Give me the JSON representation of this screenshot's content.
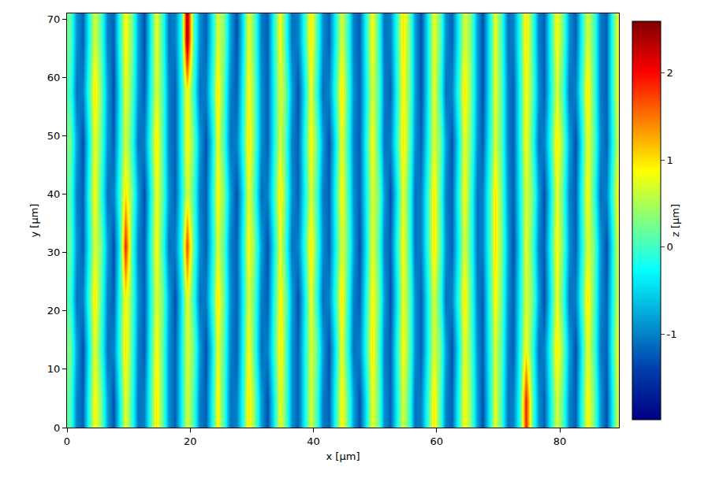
{
  "chart_data": {
    "type": "heatmap",
    "x_label": "x [µm]",
    "y_label": "y [µm]",
    "colorbar_label": "z [µm]",
    "xlim": [
      0,
      89.6
    ],
    "ylim": [
      0,
      71
    ],
    "xticks": [
      0,
      20,
      40,
      60,
      80
    ],
    "yticks": [
      0,
      10,
      20,
      30,
      40,
      50,
      60,
      70
    ],
    "zlim": [
      -1.98,
      2.59
    ],
    "zticks": [
      -1,
      0,
      1,
      2
    ],
    "x": [
      0.5,
      1.5,
      2.5,
      3.5,
      4.5,
      5.5,
      6.5,
      7.5,
      8.5,
      9.5,
      10.5,
      11.5,
      12.5,
      13.5,
      14.5,
      15.5,
      16.5,
      17.5,
      18.5,
      19.5,
      20.5,
      21.5,
      22.5,
      23.5,
      24.5,
      25.5,
      26.5,
      27.5,
      28.5,
      29.5,
      30.5,
      31.5,
      32.5,
      33.5,
      34.5,
      35.5,
      36.5,
      37.5,
      38.5,
      39.5,
      40.5,
      41.5,
      42.5,
      43.5,
      44.5,
      45.5,
      46.5,
      47.5,
      48.5,
      49.5,
      50.5,
      51.5,
      52.5,
      53.5,
      54.5,
      55.5,
      56.5,
      57.5,
      58.5,
      59.5,
      60.5,
      61.5,
      62.5,
      63.5,
      64.5,
      65.5,
      66.5,
      67.5,
      68.5,
      69.5,
      70.5,
      71.5,
      72.5,
      73.5,
      74.5,
      75.5,
      76.5,
      77.5,
      78.5,
      79.5,
      80.5,
      81.5,
      82.5,
      83.5,
      84.5,
      85.5,
      86.5,
      87.5,
      88.5,
      89.5
    ],
    "y": [
      4.4,
      13.3,
      22.2,
      31.1,
      39.9,
      48.8,
      57.7,
      66.6
    ],
    "z": [
      [
        0.1,
        -1.0,
        -1.2,
        -0.2,
        0.9,
        0.3,
        -0.8,
        -1.3,
        -0.4,
        0.8,
        0.0,
        -1.1,
        -1.0,
        -0.1,
        1.0,
        0.2,
        -0.9,
        -1.2,
        -0.3,
        0.7,
        0.1,
        -1.0,
        -1.2,
        -0.2,
        0.9,
        0.0,
        -1.1,
        -1.0,
        -0.1,
        1.0,
        0.3,
        -0.8,
        -1.3,
        -0.4,
        0.8,
        0.2,
        -0.9,
        -1.2,
        -0.3,
        0.7,
        0.1,
        -1.0,
        -1.2,
        -0.2,
        0.9,
        0.3,
        -0.8,
        -1.3,
        -0.4,
        0.8,
        0.2,
        -0.9,
        -1.2,
        -0.3,
        0.7,
        0.0,
        -1.1,
        -1.0,
        -0.1,
        1.0,
        0.1,
        -1.0,
        -1.2,
        -0.2,
        0.9,
        0.3,
        -0.8,
        -1.3,
        -0.4,
        0.8,
        0.0,
        -1.1,
        -1.0,
        -0.1,
        1.9,
        0.2,
        -0.9,
        -1.2,
        -0.3,
        0.7,
        0.1,
        -1.0,
        -1.2,
        -0.2,
        0.9,
        0.3,
        -0.8,
        -1.3,
        -0.4,
        0.8
      ],
      [
        0.3,
        -0.8,
        -1.3,
        -0.4,
        0.8,
        0.0,
        -1.1,
        -1.0,
        -0.1,
        1.0,
        0.1,
        -1.0,
        -1.2,
        -0.2,
        0.9,
        0.2,
        -0.9,
        -1.2,
        -0.3,
        0.7,
        0.3,
        -0.8,
        -1.3,
        -0.4,
        0.8,
        0.1,
        -1.0,
        -1.2,
        -0.2,
        0.9,
        0.0,
        -1.1,
        -1.0,
        -0.1,
        1.0,
        0.2,
        -0.9,
        -1.2,
        -0.3,
        0.7,
        0.3,
        -0.8,
        -1.3,
        -0.4,
        0.8,
        0.0,
        -1.1,
        -1.0,
        -0.1,
        1.0,
        0.1,
        -1.0,
        -1.2,
        -0.2,
        0.9,
        0.2,
        -0.9,
        -1.2,
        -0.3,
        0.7,
        0.3,
        -0.8,
        -1.3,
        -0.4,
        0.8,
        0.2,
        -0.9,
        -1.2,
        -0.3,
        0.7,
        0.1,
        -1.0,
        -1.2,
        -0.2,
        0.9,
        0.0,
        -1.1,
        -1.0,
        -0.1,
        1.0,
        0.3,
        -0.8,
        -1.3,
        -0.4,
        0.8,
        0.1,
        -1.0,
        -1.2,
        -0.2,
        0.9
      ],
      [
        0.0,
        -1.1,
        -1.0,
        -0.1,
        1.0,
        0.1,
        -1.0,
        -1.2,
        -0.2,
        0.9,
        0.2,
        -0.9,
        -1.2,
        -0.3,
        0.7,
        0.3,
        -0.8,
        -1.3,
        -0.4,
        0.8,
        0.0,
        -1.1,
        -1.0,
        -0.1,
        1.0,
        0.2,
        -0.9,
        -1.2,
        -0.3,
        0.7,
        0.1,
        -1.0,
        -1.2,
        -0.2,
        0.9,
        0.3,
        -0.8,
        -1.3,
        -0.4,
        0.8,
        0.0,
        -1.1,
        -1.0,
        -0.1,
        1.0,
        0.1,
        -1.0,
        -1.2,
        -0.2,
        0.9,
        0.3,
        -0.8,
        -1.3,
        -0.4,
        0.8,
        0.2,
        -0.9,
        -1.2,
        -0.3,
        0.7,
        0.0,
        -1.1,
        -1.0,
        -0.1,
        1.0,
        0.1,
        -1.0,
        -1.2,
        -0.2,
        0.9,
        0.2,
        -0.9,
        -1.2,
        -0.3,
        0.7,
        0.3,
        -0.8,
        -1.3,
        -0.4,
        0.8,
        0.0,
        -1.1,
        -1.0,
        -0.1,
        1.0,
        0.2,
        -0.9,
        -1.2,
        -0.3,
        0.7
      ],
      [
        0.2,
        -0.9,
        -1.2,
        -0.3,
        0.7,
        0.3,
        -0.8,
        -1.3,
        -0.4,
        1.9,
        0.1,
        -1.0,
        -1.2,
        -0.2,
        0.9,
        0.0,
        -1.1,
        -1.0,
        -0.1,
        1.7,
        0.2,
        -0.9,
        -1.2,
        -0.3,
        0.7,
        0.1,
        -1.0,
        -1.2,
        -0.2,
        0.9,
        0.3,
        -0.8,
        -1.3,
        -0.4,
        0.8,
        0.0,
        -1.1,
        -1.0,
        -0.1,
        1.0,
        0.2,
        -0.9,
        -1.2,
        -0.3,
        0.7,
        0.3,
        -0.8,
        -1.3,
        -0.4,
        0.8,
        0.1,
        -1.0,
        -1.2,
        -0.2,
        0.9,
        0.0,
        -1.1,
        -1.0,
        -0.1,
        1.0,
        0.2,
        -0.9,
        -1.2,
        -0.3,
        0.7,
        0.0,
        -1.1,
        -1.0,
        -0.1,
        1.0,
        0.3,
        -0.8,
        -1.3,
        -0.4,
        0.8,
        0.1,
        -1.0,
        -1.2,
        -0.2,
        0.9,
        0.2,
        -0.9,
        -1.2,
        -0.3,
        0.7,
        0.3,
        -0.8,
        -1.3,
        -0.4,
        0.8
      ],
      [
        0.1,
        -1.0,
        -1.2,
        -0.2,
        0.9,
        0.0,
        -1.1,
        -1.0,
        -0.1,
        1.0,
        0.3,
        -0.8,
        -1.3,
        -0.4,
        0.8,
        0.2,
        -0.9,
        -1.2,
        -0.3,
        0.7,
        0.1,
        -1.0,
        -1.2,
        -0.2,
        0.9,
        0.3,
        -0.8,
        -1.3,
        -0.4,
        0.8,
        0.0,
        -1.1,
        -1.0,
        -0.1,
        1.0,
        0.2,
        -0.9,
        -1.2,
        -0.3,
        0.7,
        0.1,
        -1.0,
        -1.2,
        -0.2,
        0.9,
        0.2,
        -0.9,
        -1.2,
        -0.3,
        0.7,
        0.3,
        -0.8,
        -1.3,
        -0.4,
        0.8,
        0.0,
        -1.1,
        -1.0,
        -0.1,
        1.0,
        0.1,
        -1.0,
        -1.2,
        -0.2,
        0.9,
        0.0,
        -1.1,
        -1.0,
        -0.1,
        1.0,
        0.2,
        -0.9,
        -1.2,
        -0.3,
        0.7,
        0.3,
        -0.8,
        -1.3,
        -0.4,
        0.8,
        0.1,
        -1.0,
        -1.2,
        -0.2,
        0.9,
        0.0,
        -1.1,
        -1.0,
        -0.1,
        1.0
      ],
      [
        0.3,
        -0.8,
        -1.3,
        -0.4,
        0.8,
        0.2,
        -0.9,
        -1.2,
        -0.3,
        0.7,
        0.0,
        -1.1,
        -1.0,
        -0.1,
        1.0,
        0.1,
        -1.0,
        -1.2,
        -0.2,
        0.9,
        0.3,
        -0.8,
        -1.3,
        -0.4,
        0.8,
        0.0,
        -1.1,
        -1.0,
        -0.1,
        1.0,
        0.2,
        -0.9,
        -1.2,
        -0.3,
        0.7,
        0.1,
        -1.0,
        -1.2,
        -0.2,
        0.9,
        0.3,
        -0.8,
        -1.3,
        -0.4,
        0.8,
        0.1,
        -1.0,
        -1.2,
        -0.2,
        0.9,
        0.0,
        -1.1,
        -1.0,
        -0.1,
        1.0,
        0.2,
        -0.9,
        -1.2,
        -0.3,
        0.7,
        0.3,
        -0.8,
        -1.3,
        -0.4,
        0.8,
        0.2,
        -0.9,
        -1.2,
        -0.3,
        0.7,
        0.1,
        -1.0,
        -1.2,
        -0.2,
        0.9,
        0.0,
        -1.1,
        -1.0,
        -0.1,
        1.0,
        0.3,
        -0.8,
        -1.3,
        -0.4,
        0.8,
        0.2,
        -0.9,
        -1.2,
        -0.3,
        0.7
      ],
      [
        0.0,
        -1.1,
        -1.0,
        -0.1,
        1.0,
        0.3,
        -0.8,
        -1.3,
        -0.4,
        0.8,
        0.2,
        -0.9,
        -1.2,
        -0.3,
        0.7,
        0.1,
        -1.0,
        -1.2,
        -0.2,
        0.9,
        0.0,
        -1.1,
        -1.0,
        -0.1,
        1.0,
        0.1,
        -1.0,
        -1.2,
        -0.2,
        0.9,
        0.2,
        -0.9,
        -1.2,
        -0.3,
        0.7,
        0.3,
        -0.8,
        -1.3,
        -0.4,
        0.8,
        0.0,
        -1.1,
        -1.0,
        -0.1,
        1.0,
        0.2,
        -0.9,
        -1.2,
        -0.3,
        0.7,
        0.1,
        -1.0,
        -1.2,
        -0.2,
        0.9,
        0.3,
        -0.8,
        -1.3,
        -0.4,
        0.8,
        0.0,
        -1.1,
        -1.0,
        -0.1,
        1.0,
        0.3,
        -0.8,
        -1.3,
        -0.4,
        0.8,
        0.1,
        -1.0,
        -1.2,
        -0.2,
        0.9,
        0.2,
        -0.9,
        -1.2,
        -0.3,
        0.7,
        0.0,
        -1.1,
        -1.0,
        -0.1,
        1.0,
        0.1,
        -1.0,
        -1.2,
        -0.2,
        0.9
      ],
      [
        0.2,
        -0.9,
        -1.2,
        -0.3,
        0.7,
        0.1,
        -1.0,
        -1.2,
        -0.2,
        0.9,
        0.3,
        -0.8,
        -1.3,
        -0.4,
        0.8,
        0.0,
        -1.1,
        -1.0,
        -0.1,
        2.5,
        0.2,
        -0.9,
        -1.2,
        -0.3,
        0.7,
        0.3,
        -0.8,
        -1.3,
        -0.4,
        0.8,
        0.1,
        -1.0,
        -1.2,
        -0.2,
        0.9,
        0.0,
        -1.1,
        -1.0,
        -0.1,
        1.0,
        0.2,
        -0.9,
        -1.2,
        -0.3,
        0.7,
        0.1,
        -1.0,
        -1.2,
        -0.2,
        0.9,
        0.0,
        -1.1,
        -1.0,
        -0.1,
        1.0,
        0.3,
        -0.8,
        -1.3,
        -0.4,
        0.8,
        0.2,
        -0.9,
        -1.2,
        -0.3,
        0.7,
        0.3,
        -0.8,
        -1.3,
        -0.4,
        0.8,
        0.0,
        -1.1,
        -1.0,
        -0.1,
        1.0,
        0.1,
        -1.0,
        -1.2,
        -0.2,
        0.9,
        0.2,
        -0.9,
        -1.2,
        -0.3,
        0.7,
        0.1,
        -1.0,
        -1.2,
        -0.2,
        0.9
      ]
    ]
  }
}
